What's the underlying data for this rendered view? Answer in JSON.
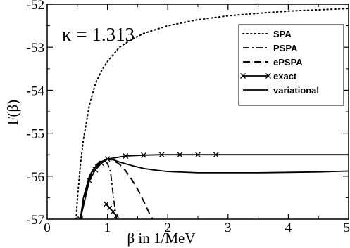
{
  "chart_data": {
    "type": "line",
    "title": "",
    "xlabel": "β in 1/MeV",
    "ylabel": "F(β)",
    "xlim": [
      0,
      5
    ],
    "ylim": [
      -57,
      -52
    ],
    "xticks": [
      0,
      1,
      2,
      3,
      4,
      5
    ],
    "yticks": [
      -57,
      -56,
      -55,
      -54,
      -53,
      -52
    ],
    "xtick_labels": [
      "0",
      "1",
      "2",
      "3",
      "4",
      "5"
    ],
    "ytick_labels": [
      "-57",
      "-56",
      "-55",
      "-54",
      "-53",
      "-52"
    ],
    "grid": false,
    "legend_position": "top-right",
    "annotation": "κ = 1.313",
    "series": [
      {
        "name": "SPA",
        "style": "dotted",
        "x": [
          0.48,
          0.5,
          0.55,
          0.6,
          0.7,
          0.8,
          0.9,
          1.0,
          1.2,
          1.4,
          1.6,
          2.0,
          2.5,
          3.0,
          3.5,
          4.0,
          4.5,
          5.0
        ],
        "y": [
          -57.0,
          -56.55,
          -55.75,
          -55.15,
          -54.35,
          -53.85,
          -53.55,
          -53.33,
          -53.0,
          -52.82,
          -52.68,
          -52.5,
          -52.36,
          -52.27,
          -52.21,
          -52.16,
          -52.13,
          -52.1
        ]
      },
      {
        "name": "PSPA",
        "style": "dashdot",
        "x": [
          0.55,
          0.6,
          0.7,
          0.8,
          0.9,
          0.95,
          1.0,
          1.05,
          1.1,
          1.15
        ],
        "y": [
          -57.0,
          -56.6,
          -56.05,
          -55.8,
          -55.68,
          -55.66,
          -55.7,
          -55.9,
          -56.5,
          -57.0
        ]
      },
      {
        "name": "ePSPA",
        "style": "dashed",
        "x": [
          0.55,
          0.6,
          0.7,
          0.8,
          0.9,
          1.0,
          1.1,
          1.2,
          1.3,
          1.4,
          1.5,
          1.6,
          1.7,
          1.75
        ],
        "y": [
          -57.0,
          -56.6,
          -56.0,
          -55.75,
          -55.64,
          -55.6,
          -55.63,
          -55.72,
          -55.87,
          -56.07,
          -56.3,
          -56.58,
          -56.88,
          -57.0
        ]
      },
      {
        "name": "exact",
        "style": "solid-x",
        "x": [
          0.55,
          0.7,
          0.8,
          0.9,
          1.0,
          1.3,
          1.6,
          1.9,
          2.2,
          2.5,
          2.8
        ],
        "y": [
          -57.0,
          -56.1,
          -55.85,
          -55.7,
          -55.6,
          -55.53,
          -55.51,
          -55.5,
          -55.5,
          -55.5,
          -55.5
        ],
        "continuation": {
          "x": [
            2.8,
            5.0
          ],
          "y": [
            -55.5,
            -55.5
          ]
        }
      },
      {
        "name": "variational",
        "style": "solid",
        "x": [
          0.55,
          0.6,
          0.7,
          0.8,
          0.9,
          1.0,
          1.1,
          1.2,
          1.4,
          1.6,
          1.8,
          2.0,
          2.5,
          3.0,
          3.5,
          4.0,
          4.5,
          5.0
        ],
        "y": [
          -57.0,
          -56.5,
          -56.0,
          -55.78,
          -55.66,
          -55.6,
          -55.62,
          -55.67,
          -55.75,
          -55.82,
          -55.86,
          -55.89,
          -55.92,
          -55.92,
          -55.92,
          -55.91,
          -55.9,
          -55.88
        ]
      }
    ]
  }
}
